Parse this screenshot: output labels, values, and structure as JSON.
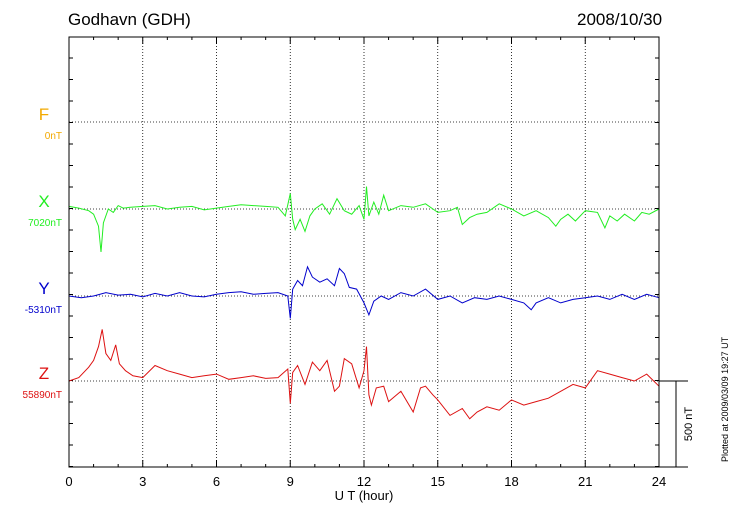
{
  "header": {
    "station": "Godhavn (GDH)",
    "date": "2008/10/30"
  },
  "footer_note": "Plotted at 2009/03/09 19:27 UT",
  "chart_data": {
    "type": "line",
    "xlabel": "U T (hour)",
    "xlim": [
      0,
      24
    ],
    "x_ticks": [
      "0",
      "3",
      "6",
      "9",
      "12",
      "15",
      "18",
      "21",
      "24"
    ],
    "scale_bar_label": "500 nT",
    "scale_bar_nT": 500,
    "series": [
      {
        "name": "F",
        "baseline_label": "0nT",
        "color": "#f2a900",
        "values": []
      },
      {
        "name": "X",
        "baseline_label": "7020nT",
        "color": "#22ee22",
        "x": [
          0,
          0.4,
          0.8,
          1.0,
          1.2,
          1.3,
          1.4,
          1.6,
          1.8,
          2.0,
          2.2,
          2.5,
          3,
          3.5,
          4,
          4.5,
          5,
          5.5,
          6,
          6.5,
          7,
          7.5,
          8,
          8.5,
          8.8,
          9.0,
          9.1,
          9.2,
          9.4,
          9.6,
          9.8,
          10,
          10.3,
          10.6,
          10.9,
          11.2,
          11.5,
          11.8,
          12.0,
          12.1,
          12.2,
          12.4,
          12.6,
          12.8,
          13,
          13.5,
          14,
          14.5,
          15,
          15.5,
          15.8,
          16,
          16.3,
          16.6,
          17,
          17.5,
          18,
          18.5,
          19,
          19.5,
          19.8,
          20,
          20.3,
          20.6,
          21,
          21.5,
          21.8,
          22,
          22.3,
          22.6,
          23,
          23.3,
          23.6,
          24
        ],
        "values": [
          15,
          5,
          -10,
          -30,
          -100,
          -250,
          -80,
          0,
          -20,
          20,
          5,
          10,
          15,
          20,
          0,
          10,
          15,
          -5,
          5,
          15,
          25,
          20,
          15,
          10,
          -40,
          90,
          -60,
          -120,
          -60,
          -130,
          -40,
          0,
          30,
          -30,
          60,
          -10,
          -30,
          20,
          -60,
          130,
          -40,
          40,
          -30,
          80,
          -10,
          20,
          10,
          30,
          -20,
          -10,
          10,
          -90,
          -50,
          -30,
          -20,
          30,
          0,
          -40,
          -10,
          -50,
          -100,
          -60,
          -30,
          -70,
          -10,
          -20,
          -110,
          -40,
          -70,
          -30,
          -70,
          -20,
          -30,
          0
        ]
      },
      {
        "name": "Y",
        "baseline_label": "-5310nT",
        "color": "#0000cc",
        "x": [
          0,
          0.5,
          1,
          1.5,
          2,
          2.5,
          3,
          3.5,
          4,
          4.5,
          5,
          5.5,
          6,
          6.5,
          7,
          7.5,
          8,
          8.5,
          8.9,
          9.0,
          9.1,
          9.3,
          9.5,
          9.7,
          9.9,
          10.2,
          10.5,
          10.8,
          11.0,
          11.2,
          11.4,
          11.7,
          12.0,
          12.2,
          12.4,
          12.7,
          13,
          13.5,
          14,
          14.5,
          15,
          15.5,
          16,
          16.5,
          17,
          17.5,
          18,
          18.5,
          18.8,
          19,
          19.5,
          20,
          20.5,
          21,
          21.5,
          22,
          22.5,
          23,
          23.5,
          24
        ],
        "values": [
          0,
          -10,
          0,
          20,
          5,
          10,
          -5,
          15,
          0,
          20,
          0,
          -5,
          10,
          20,
          25,
          10,
          15,
          20,
          0,
          -130,
          40,
          90,
          60,
          170,
          110,
          80,
          100,
          60,
          160,
          130,
          50,
          40,
          -40,
          -110,
          -30,
          0,
          -20,
          20,
          0,
          40,
          -20,
          0,
          -40,
          -10,
          -20,
          0,
          -20,
          -40,
          -80,
          -40,
          -10,
          -40,
          -20,
          -10,
          0,
          -20,
          10,
          -20,
          10,
          -10
        ]
      },
      {
        "name": "Z",
        "baseline_label": "55890nT",
        "color": "#dd1111",
        "x": [
          0,
          0.4,
          0.8,
          1.0,
          1.2,
          1.35,
          1.5,
          1.7,
          1.9,
          2.05,
          2.3,
          2.6,
          3,
          3.5,
          4,
          4.5,
          5,
          5.5,
          6,
          6.5,
          7,
          7.5,
          8,
          8.5,
          8.9,
          9.0,
          9.1,
          9.3,
          9.6,
          9.9,
          10.2,
          10.5,
          10.8,
          11.0,
          11.2,
          11.5,
          11.8,
          12.0,
          12.1,
          12.2,
          12.3,
          12.5,
          12.8,
          13,
          13.5,
          14,
          14.3,
          14.5,
          14.8,
          15,
          15.5,
          16,
          16.3,
          16.6,
          17,
          17.5,
          18,
          18.5,
          19,
          19.5,
          20,
          20.5,
          21,
          21.5,
          22,
          22.5,
          23,
          23.5,
          24
        ],
        "values": [
          0,
          20,
          80,
          120,
          200,
          300,
          160,
          120,
          210,
          100,
          60,
          30,
          20,
          90,
          60,
          40,
          20,
          30,
          40,
          10,
          20,
          30,
          15,
          20,
          70,
          -130,
          50,
          90,
          -20,
          110,
          60,
          120,
          -60,
          -30,
          130,
          100,
          -40,
          60,
          200,
          -80,
          -140,
          -40,
          -30,
          -120,
          -60,
          -180,
          -40,
          -30,
          -80,
          -110,
          -200,
          -160,
          -220,
          -180,
          -150,
          -170,
          -110,
          -140,
          -120,
          -100,
          -60,
          -20,
          -40,
          60,
          40,
          20,
          0,
          40,
          -30
        ]
      }
    ]
  }
}
